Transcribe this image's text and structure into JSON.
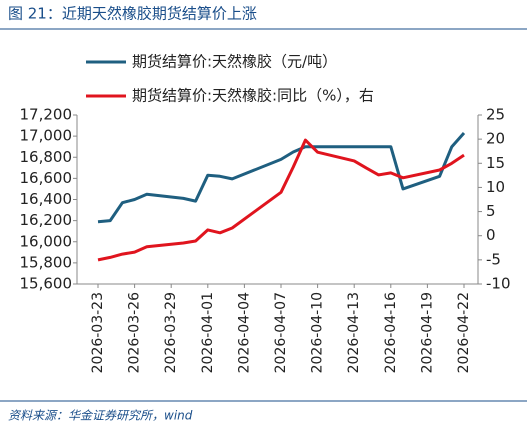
{
  "chart_data": {
    "type": "line",
    "title": "图 21：近期天然橡胶期货结算价上涨",
    "source": "资料来源：华金证券研究所，wind",
    "x": [
      "2026-03-23",
      "2026-03-24",
      "2026-03-25",
      "2026-03-26",
      "2026-03-27",
      "2026-03-30",
      "2026-03-31",
      "2026-04-01",
      "2026-04-02",
      "2026-04-03",
      "2026-04-07",
      "2026-04-08",
      "2026-04-09",
      "2026-04-10",
      "2026-04-13",
      "2026-04-14",
      "2026-04-15",
      "2026-04-16",
      "2026-04-17",
      "2026-04-20",
      "2026-04-21",
      "2026-04-22"
    ],
    "xticks": [
      "2026-03-23",
      "2026-03-26",
      "2026-03-29",
      "2026-04-01",
      "2026-04-04",
      "2026-04-07",
      "2026-04-10",
      "2026-04-13",
      "2026-04-16",
      "2026-04-19",
      "2026-04-22"
    ],
    "series": [
      {
        "name": "期货结算价:天然橡胶（元/吨）",
        "color": "#1f5f80",
        "values": [
          16190,
          16200,
          16370,
          16400,
          16450,
          16410,
          16385,
          16630,
          16620,
          16595,
          16780,
          16850,
          16900,
          16900,
          16900,
          16900,
          16900,
          16900,
          16500,
          16620,
          16900,
          17030
        ]
      },
      {
        "name": "期货结算价:天然橡胶:同比（%），右",
        "color": "#e0141e",
        "axis": "y2",
        "values": [
          -5.0,
          -4.5,
          -3.8,
          -3.4,
          -2.3,
          -1.5,
          -1.1,
          1.2,
          0.6,
          1.6,
          9.0,
          14.2,
          19.8,
          17.3,
          15.5,
          14.0,
          12.6,
          13.0,
          12.0,
          13.6,
          15.0,
          16.7
        ]
      }
    ],
    "ylim": [
      15600,
      17200
    ],
    "yticks": [
      {
        "value": 15600,
        "label": "15,600"
      },
      {
        "value": 15800,
        "label": "15,800"
      },
      {
        "value": 16000,
        "label": "16,000"
      },
      {
        "value": 16200,
        "label": "16,200"
      },
      {
        "value": 16400,
        "label": "16,400"
      },
      {
        "value": 16600,
        "label": "16,600"
      },
      {
        "value": 16800,
        "label": "16,800"
      },
      {
        "value": 17000,
        "label": "17,000"
      },
      {
        "value": 17200,
        "label": "17,200"
      }
    ],
    "y2lim": [
      -10,
      25
    ],
    "y2ticks": [
      -10,
      -5,
      0,
      5,
      10,
      15,
      20,
      25
    ],
    "grid": false
  }
}
